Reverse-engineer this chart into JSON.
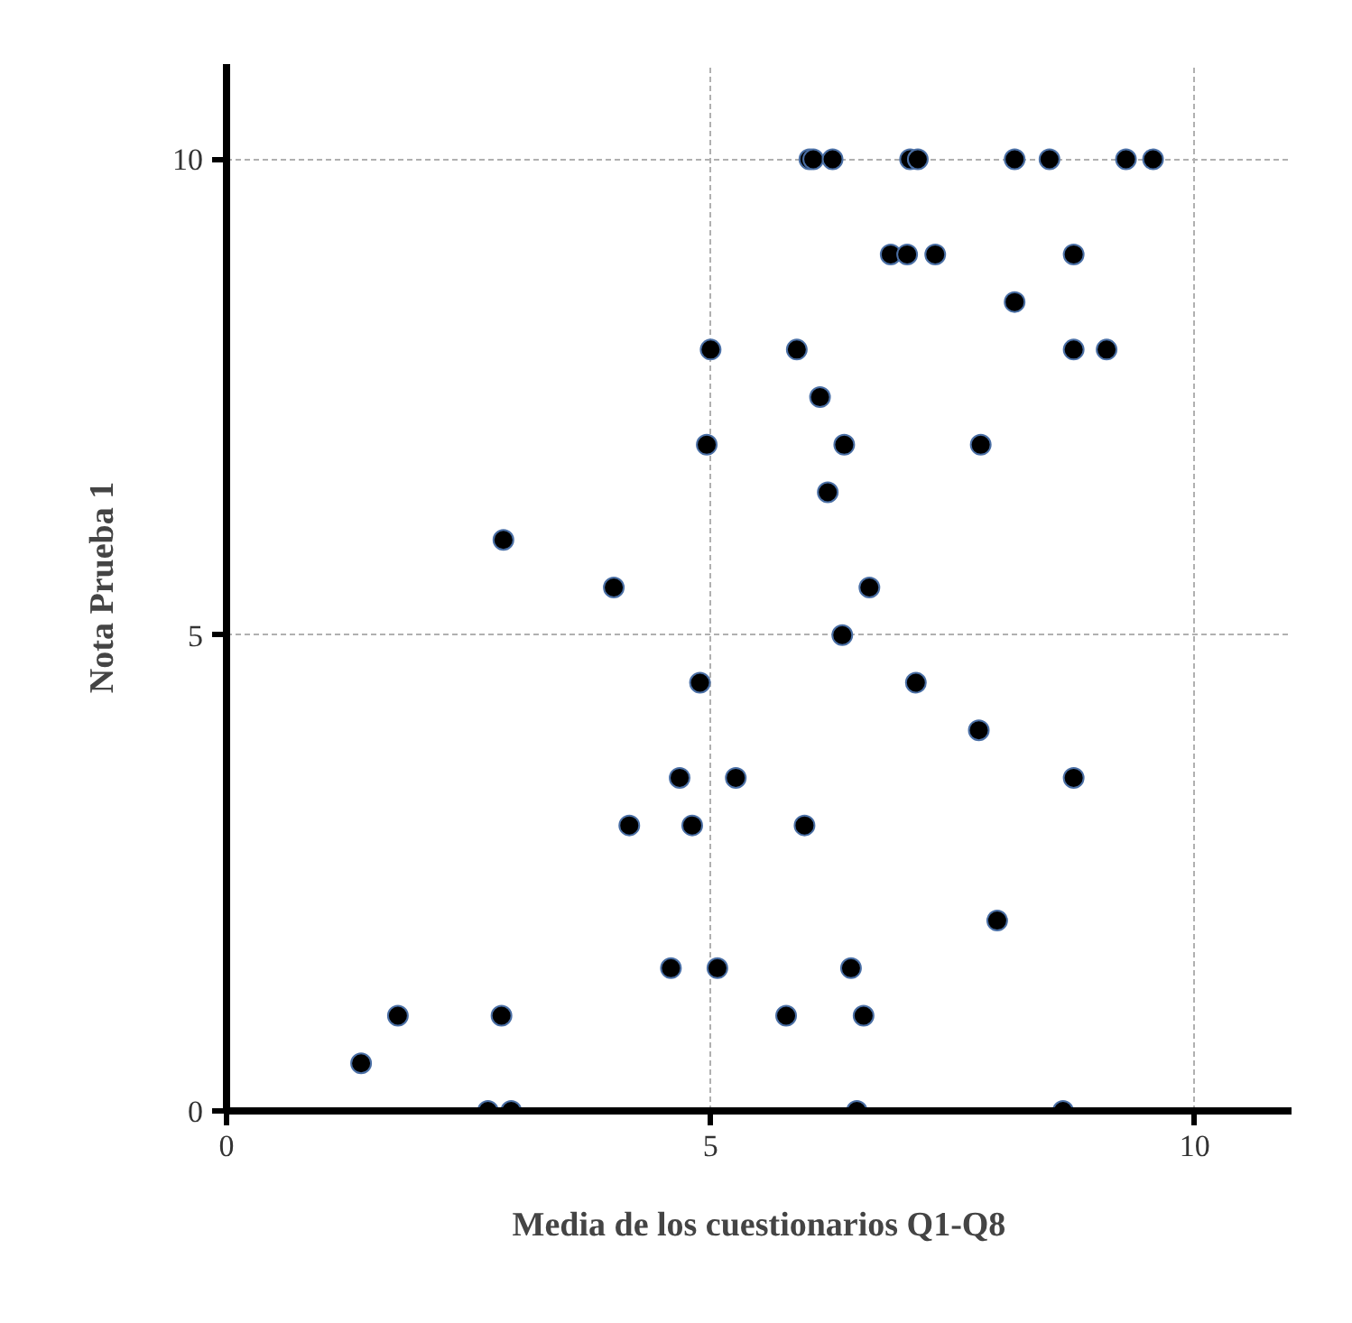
{
  "chart_data": {
    "type": "scatter",
    "xlabel": "Media de los cuestionarios Q1-Q8",
    "ylabel": "Nota Prueba 1",
    "x": [
      6.02,
      6.06,
      6.26,
      7.06,
      7.14,
      8.14,
      8.5,
      9.29,
      9.57,
      6.86,
      7.03,
      7.32,
      8.75,
      8.14,
      5.89,
      8.75,
      9.09,
      5.0,
      4.96,
      2.86,
      4.0,
      6.13,
      6.38,
      7.79,
      6.21,
      6.64,
      6.36,
      7.12,
      7.77,
      8.75,
      5.97,
      7.96,
      6.45,
      5.78,
      6.58,
      6.51,
      8.64,
      4.89,
      4.68,
      5.26,
      4.16,
      4.81,
      4.59,
      5.07,
      1.77,
      2.84,
      1.39,
      2.7,
      2.94
    ],
    "values": [
      10,
      10,
      10,
      10,
      10,
      10,
      10,
      10,
      10,
      9,
      9,
      9,
      9,
      8.5,
      8,
      8,
      8,
      8,
      7,
      6,
      5.5,
      7.5,
      7,
      7,
      6.5,
      5.5,
      5,
      4.5,
      4,
      3.5,
      3,
      2,
      1.5,
      1,
      1,
      0,
      0,
      4.5,
      3.5,
      3.5,
      3,
      3,
      1.5,
      1.5,
      1,
      1,
      0.5,
      0,
      0
    ],
    "color": "#000000",
    "marker": "circle",
    "xlim": [
      0,
      11
    ],
    "ylim": [
      0,
      11
    ],
    "xticks": [
      0,
      5,
      10
    ],
    "yticks": [
      0,
      5,
      10
    ],
    "grid": true
  }
}
